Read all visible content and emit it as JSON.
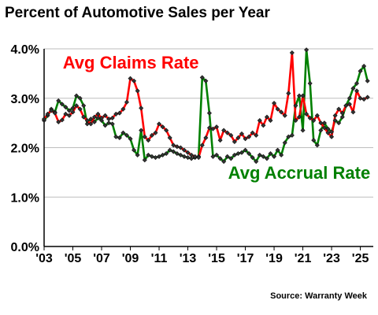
{
  "header": {
    "title": "Percent of Automotive Sales per Year"
  },
  "footer": {
    "source": "Source: Warranty Week"
  },
  "chart_data": {
    "type": "line",
    "title": "Percent of Automotive Sales per Year",
    "xlabel": "",
    "ylabel": "",
    "xlim": [
      2003,
      2025.9
    ],
    "ylim": [
      0,
      4
    ],
    "y_ticks": [
      0,
      1,
      2,
      3,
      4
    ],
    "y_tick_labels": [
      "0.0%",
      "1.0%",
      "2.0%",
      "3.0%",
      "4.0%"
    ],
    "x_ticks": [
      2003,
      2005,
      2007,
      2009,
      2011,
      2013,
      2015,
      2017,
      2019,
      2021,
      2023,
      2025
    ],
    "x_tick_labels": [
      "'03",
      "'05",
      "'07",
      "'09",
      "'11",
      "'13",
      "'15",
      "'17",
      "'19",
      "'21",
      "'23",
      "'25"
    ],
    "grid": "horizontal",
    "colors": {
      "claims": "#ff0000",
      "accrual": "#008000"
    },
    "annotations": [
      {
        "text": "Avg Claims Rate",
        "series": "claims",
        "x": 2004.3,
        "y": 3.6
      },
      {
        "text": "Avg Accrual Rate",
        "series": "accrual",
        "x": 2015.8,
        "y": 1.37
      }
    ],
    "series": [
      {
        "key": "claims",
        "x": [
          2003.0,
          2003.25,
          2003.5,
          2003.75,
          2004.0,
          2004.25,
          2004.5,
          2004.75,
          2005.0,
          2005.25,
          2005.5,
          2005.75,
          2006.0,
          2006.25,
          2006.5,
          2006.75,
          2007.0,
          2007.25,
          2007.5,
          2007.75,
          2008.0,
          2008.25,
          2008.5,
          2008.75,
          2009.0,
          2009.25,
          2009.5,
          2009.75,
          2010.0,
          2010.25,
          2010.5,
          2010.75,
          2011.0,
          2011.25,
          2011.5,
          2011.75,
          2012.0,
          2012.25,
          2012.5,
          2012.75,
          2013.0,
          2013.25,
          2013.5,
          2013.75,
          2014.0,
          2014.25,
          2014.5,
          2014.75,
          2015.0,
          2015.25,
          2015.5,
          2015.75,
          2016.0,
          2016.25,
          2016.5,
          2016.75,
          2017.0,
          2017.25,
          2017.5,
          2017.75,
          2018.0,
          2018.25,
          2018.5,
          2018.75,
          2019.0,
          2019.25,
          2019.5,
          2019.75,
          2020.0,
          2020.25,
          2020.5,
          2020.75,
          2021.0,
          2021.25,
          2021.5,
          2021.75,
          2022.0,
          2022.25,
          2022.5,
          2022.75,
          2023.0,
          2023.25,
          2023.5,
          2023.75,
          2024.0,
          2024.25,
          2024.5,
          2024.75,
          2025.0,
          2025.25,
          2025.5
        ],
        "values": [
          2.58,
          2.68,
          2.75,
          2.7,
          2.52,
          2.56,
          2.68,
          2.65,
          2.72,
          2.85,
          2.78,
          2.62,
          2.55,
          2.48,
          2.62,
          2.68,
          2.6,
          2.65,
          2.58,
          2.6,
          2.68,
          2.7,
          2.78,
          2.92,
          3.4,
          3.35,
          3.15,
          2.8,
          2.22,
          2.15,
          2.25,
          2.3,
          2.48,
          2.42,
          2.35,
          2.2,
          2.05,
          2.02,
          2.0,
          1.95,
          1.9,
          1.85,
          1.82,
          1.8,
          2.05,
          2.2,
          2.4,
          2.38,
          2.42,
          2.15,
          2.35,
          2.3,
          2.25,
          2.12,
          2.2,
          2.28,
          2.18,
          2.22,
          2.3,
          2.25,
          2.55,
          2.45,
          2.62,
          2.55,
          2.9,
          2.78,
          2.72,
          2.65,
          3.1,
          3.92,
          2.55,
          2.62,
          3.05,
          2.68,
          2.6,
          2.55,
          2.65,
          2.5,
          2.4,
          2.3,
          2.22,
          2.65,
          2.78,
          2.7,
          2.85,
          2.88,
          2.72,
          3.15,
          3.0,
          2.98,
          3.02
        ]
      },
      {
        "key": "accrual",
        "x": [
          2003.0,
          2003.25,
          2003.5,
          2003.75,
          2004.0,
          2004.25,
          2004.5,
          2004.75,
          2005.0,
          2005.25,
          2005.5,
          2005.75,
          2006.0,
          2006.25,
          2006.5,
          2006.75,
          2007.0,
          2007.25,
          2007.5,
          2007.75,
          2008.0,
          2008.25,
          2008.5,
          2008.75,
          2009.0,
          2009.25,
          2009.5,
          2009.75,
          2010.0,
          2010.25,
          2010.5,
          2010.75,
          2011.0,
          2011.25,
          2011.5,
          2011.75,
          2012.0,
          2012.25,
          2012.5,
          2012.75,
          2013.0,
          2013.25,
          2013.5,
          2013.75,
          2014.0,
          2014.25,
          2014.5,
          2014.75,
          2015.0,
          2015.25,
          2015.5,
          2015.75,
          2016.0,
          2016.25,
          2016.5,
          2016.75,
          2017.0,
          2017.25,
          2017.5,
          2017.75,
          2018.0,
          2018.25,
          2018.5,
          2018.75,
          2019.0,
          2019.25,
          2019.5,
          2019.75,
          2020.0,
          2020.25,
          2020.5,
          2020.75,
          2021.0,
          2021.25,
          2021.5,
          2021.75,
          2022.0,
          2022.25,
          2022.5,
          2022.75,
          2023.0,
          2023.25,
          2023.5,
          2023.75,
          2024.0,
          2024.25,
          2024.5,
          2024.75,
          2025.0,
          2025.25,
          2025.5
        ],
        "values": [
          2.55,
          2.65,
          2.78,
          2.72,
          2.95,
          2.88,
          2.82,
          2.75,
          2.8,
          3.05,
          3.0,
          2.85,
          2.48,
          2.58,
          2.52,
          2.6,
          2.55,
          2.45,
          2.5,
          2.48,
          2.22,
          2.2,
          2.3,
          2.25,
          2.18,
          1.95,
          1.85,
          2.35,
          1.75,
          1.85,
          1.82,
          1.8,
          1.82,
          1.85,
          1.88,
          1.95,
          1.92,
          1.88,
          1.85,
          1.82,
          1.8,
          1.78,
          1.8,
          1.82,
          3.42,
          3.35,
          2.7,
          1.82,
          1.85,
          1.78,
          1.72,
          1.82,
          1.78,
          1.85,
          1.88,
          1.9,
          1.95,
          1.88,
          1.8,
          1.72,
          1.85,
          1.82,
          1.78,
          1.88,
          1.82,
          1.95,
          1.85,
          2.1,
          2.22,
          2.25,
          2.85,
          3.05,
          2.35,
          3.98,
          3.3,
          2.15,
          2.05,
          2.35,
          2.5,
          2.38,
          2.32,
          2.55,
          2.5,
          2.62,
          2.85,
          3.0,
          3.2,
          3.3,
          3.55,
          3.65,
          3.35
        ]
      }
    ]
  }
}
